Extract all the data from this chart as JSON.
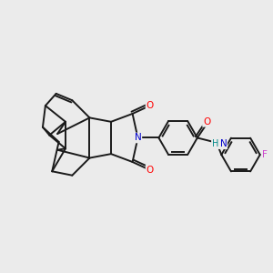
{
  "background_color": "#ebebeb",
  "bond_color": "#1a1a1a",
  "bond_width": 1.4,
  "atom_colors": {
    "O": "#ff0000",
    "N": "#0000cc",
    "F": "#cc44cc",
    "H": "#008888",
    "C": "#1a1a1a"
  },
  "figsize": [
    3.0,
    3.0
  ],
  "dpi": 100
}
